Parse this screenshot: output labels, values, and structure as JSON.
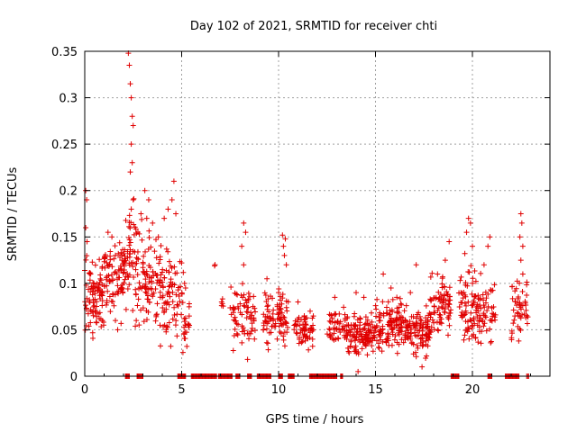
{
  "chart_data": {
    "type": "scatter",
    "title": "Day 102 of 2021, SRMTID for receiver chti",
    "xlabel": "GPS time / hours",
    "ylabel": "SRMTID / TECUs",
    "xlim": [
      0,
      24
    ],
    "ylim": [
      0,
      0.35
    ],
    "xticks": [
      0,
      5,
      10,
      15,
      20
    ],
    "xtick_labels": [
      "0",
      "5",
      "10",
      "15",
      "20"
    ],
    "yticks": [
      0,
      0.05,
      0.1,
      0.15,
      0.2,
      0.25,
      0.3,
      0.35
    ],
    "ytick_labels": [
      "0",
      "0.05",
      "0.1",
      "0.15",
      "0.2",
      "0.25",
      "0.3",
      "0.35"
    ],
    "grid": true,
    "marker": "+",
    "color": "#e00000",
    "clusters": [
      {
        "x": [
          0.0,
          1.0
        ],
        "y_center": 0.085,
        "y_spread": 0.04,
        "n": 90,
        "outliers": [
          [
            0.05,
            0.2
          ],
          [
            0.1,
            0.19
          ],
          [
            0.05,
            0.16
          ],
          [
            0.12,
            0.145
          ]
        ]
      },
      {
        "x": [
          1.0,
          2.0
        ],
        "y_center": 0.1,
        "y_spread": 0.035,
        "n": 80,
        "outliers": [
          [
            1.2,
            0.155
          ],
          [
            1.4,
            0.15
          ],
          [
            1.7,
            0.05
          ]
        ]
      },
      {
        "x": [
          2.0,
          2.6
        ],
        "y_center": 0.13,
        "y_spread": 0.05,
        "n": 50,
        "outliers": [
          [
            2.25,
            0.348
          ],
          [
            2.3,
            0.335
          ],
          [
            2.35,
            0.315
          ],
          [
            2.4,
            0.3
          ],
          [
            2.45,
            0.28
          ],
          [
            2.5,
            0.27
          ],
          [
            2.4,
            0.25
          ],
          [
            2.45,
            0.23
          ],
          [
            2.35,
            0.22
          ],
          [
            2.5,
            0.19
          ],
          [
            2.4,
            0.18
          ]
        ]
      },
      {
        "x": [
          2.6,
          3.6
        ],
        "y_center": 0.11,
        "y_spread": 0.045,
        "n": 80,
        "outliers": [
          [
            3.1,
            0.2
          ],
          [
            3.3,
            0.19
          ],
          [
            2.9,
            0.175
          ],
          [
            3.2,
            0.17
          ],
          [
            3.5,
            0.165
          ]
        ]
      },
      {
        "x": [
          3.6,
          5.1
        ],
        "y_center": 0.09,
        "y_spread": 0.05,
        "n": 100,
        "outliers": [
          [
            4.6,
            0.21
          ],
          [
            4.5,
            0.19
          ],
          [
            4.3,
            0.18
          ],
          [
            4.7,
            0.175
          ],
          [
            4.1,
            0.17
          ],
          [
            3.8,
            0.15
          ]
        ]
      },
      {
        "x": [
          5.1,
          5.4
        ],
        "y_center": 0.055,
        "y_spread": 0.02,
        "n": 20,
        "outliers": [
          [
            5.2,
            0.095
          ],
          [
            5.15,
            0.1
          ]
        ]
      },
      {
        "x": [
          6.7,
          6.8
        ],
        "y_center": 0.12,
        "y_spread": 0.002,
        "n": 2,
        "outliers": []
      },
      {
        "x": [
          7.0,
          7.2
        ],
        "y_center": 0.075,
        "y_spread": 0.012,
        "n": 5,
        "outliers": []
      },
      {
        "x": [
          7.5,
          8.8
        ],
        "y_center": 0.065,
        "y_spread": 0.03,
        "n": 70,
        "outliers": [
          [
            8.2,
            0.165
          ],
          [
            8.3,
            0.155
          ],
          [
            8.1,
            0.14
          ],
          [
            8.2,
            0.12
          ],
          [
            8.4,
            0.018
          ]
        ]
      },
      {
        "x": [
          9.2,
          10.2
        ],
        "y_center": 0.06,
        "y_spread": 0.028,
        "n": 60,
        "outliers": [
          [
            9.4,
            0.105
          ],
          [
            10.0,
            0.09
          ]
        ]
      },
      {
        "x": [
          10.0,
          10.5
        ],
        "y_center": 0.065,
        "y_spread": 0.03,
        "n": 30,
        "outliers": [
          [
            10.2,
            0.152
          ],
          [
            10.35,
            0.148
          ],
          [
            10.25,
            0.14
          ],
          [
            10.3,
            0.13
          ],
          [
            10.4,
            0.12
          ]
        ]
      },
      {
        "x": [
          10.8,
          11.8
        ],
        "y_center": 0.05,
        "y_spread": 0.02,
        "n": 60,
        "outliers": [
          [
            11.0,
            0.08
          ]
        ]
      },
      {
        "x": [
          12.5,
          13.5
        ],
        "y_center": 0.055,
        "y_spread": 0.02,
        "n": 50,
        "outliers": [
          [
            12.9,
            0.085
          ]
        ]
      },
      {
        "x": [
          13.5,
          15.0
        ],
        "y_center": 0.045,
        "y_spread": 0.02,
        "n": 130,
        "outliers": [
          [
            14.0,
            0.09
          ],
          [
            14.4,
            0.085
          ],
          [
            14.1,
            0.005
          ]
        ]
      },
      {
        "x": [
          15.0,
          16.5
        ],
        "y_center": 0.055,
        "y_spread": 0.025,
        "n": 120,
        "outliers": [
          [
            15.4,
            0.11
          ],
          [
            15.8,
            0.095
          ],
          [
            16.1,
            0.085
          ]
        ]
      },
      {
        "x": [
          16.5,
          17.8
        ],
        "y_center": 0.05,
        "y_spread": 0.025,
        "n": 110,
        "outliers": [
          [
            17.1,
            0.12
          ],
          [
            17.4,
            0.01
          ],
          [
            16.8,
            0.09
          ]
        ]
      },
      {
        "x": [
          17.8,
          18.9
        ],
        "y_center": 0.075,
        "y_spread": 0.03,
        "n": 80,
        "outliers": [
          [
            18.8,
            0.145
          ],
          [
            18.6,
            0.125
          ],
          [
            18.2,
            0.11
          ]
        ]
      },
      {
        "x": [
          19.3,
          20.2
        ],
        "y_center": 0.08,
        "y_spread": 0.035,
        "n": 70,
        "outliers": [
          [
            19.8,
            0.17
          ],
          [
            19.9,
            0.165
          ],
          [
            19.7,
            0.155
          ],
          [
            20.0,
            0.14
          ]
        ]
      },
      {
        "x": [
          20.2,
          21.2
        ],
        "y_center": 0.07,
        "y_spread": 0.032,
        "n": 60,
        "outliers": [
          [
            20.9,
            0.15
          ],
          [
            20.8,
            0.14
          ],
          [
            20.6,
            0.12
          ]
        ]
      },
      {
        "x": [
          22.0,
          22.9
        ],
        "y_center": 0.07,
        "y_spread": 0.03,
        "n": 50,
        "outliers": [
          [
            22.5,
            0.175
          ],
          [
            22.55,
            0.165
          ],
          [
            22.45,
            0.15
          ],
          [
            22.6,
            0.14
          ],
          [
            22.5,
            0.125
          ],
          [
            22.6,
            0.11
          ]
        ]
      }
    ],
    "zero_segments": [
      [
        2.1,
        2.3
      ],
      [
        2.7,
        3.0
      ],
      [
        4.8,
        5.2
      ],
      [
        5.5,
        6.8
      ],
      [
        6.9,
        7.6
      ],
      [
        7.8,
        8.0
      ],
      [
        8.4,
        8.6
      ],
      [
        8.9,
        9.6
      ],
      [
        10.0,
        10.2
      ],
      [
        10.5,
        10.8
      ],
      [
        11.6,
        13.0
      ],
      [
        13.2,
        13.3
      ],
      [
        18.9,
        19.3
      ],
      [
        20.8,
        21.0
      ],
      [
        21.7,
        22.4
      ],
      [
        22.8,
        22.9
      ]
    ]
  }
}
